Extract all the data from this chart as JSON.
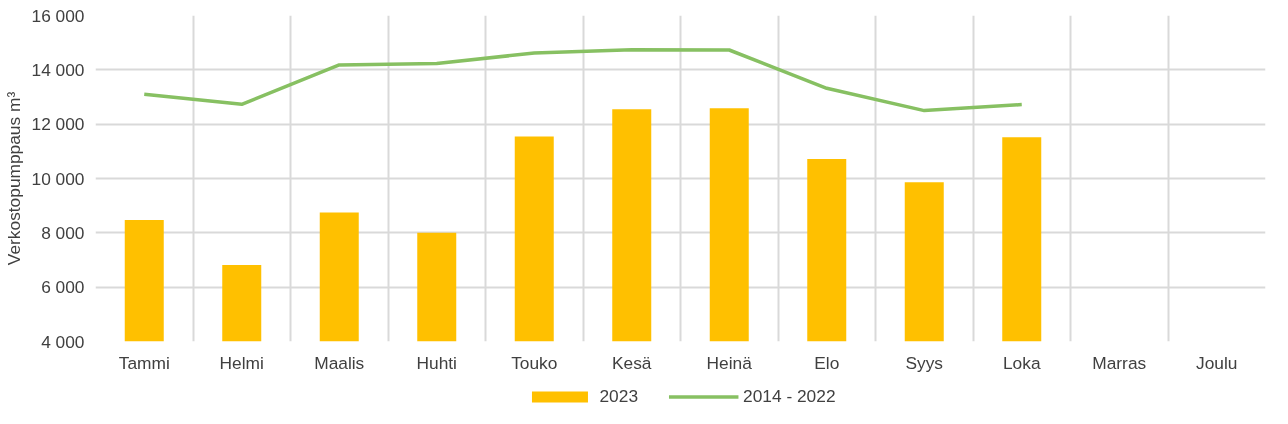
{
  "chart_data": {
    "type": "bar",
    "ylabel": "Verkostopumppaus m³",
    "categories": [
      "Tammi",
      "Helmi",
      "Maalis",
      "Huhti",
      "Touko",
      "Kesä",
      "Heinä",
      "Elo",
      "Syys",
      "Loka",
      "Marras",
      "Joulu"
    ],
    "series": [
      {
        "name": "2023",
        "color": "#ffc000",
        "values": [
          8470,
          6820,
          8750,
          8000,
          11550,
          12550,
          12590,
          10720,
          9860,
          11520,
          null,
          null
        ]
      },
      {
        "name": "2014 - 2022",
        "type": "line",
        "color": "#87c062",
        "values": [
          13100,
          12730,
          14180,
          14230,
          14620,
          14740,
          14730,
          13320,
          12500,
          12720,
          null,
          null
        ]
      }
    ],
    "ylim": [
      4000,
      16000
    ],
    "yticks": [
      {
        "value": 4000,
        "label": "4 000"
      },
      {
        "value": 6000,
        "label": "6 000"
      },
      {
        "value": 8000,
        "label": "8 000"
      },
      {
        "value": 10000,
        "label": "10 000"
      },
      {
        "value": 12000,
        "label": "12 000"
      },
      {
        "value": 14000,
        "label": "14 000"
      },
      {
        "value": 16000,
        "label": "16 000"
      }
    ],
    "grid": true,
    "legend": "bottom"
  }
}
